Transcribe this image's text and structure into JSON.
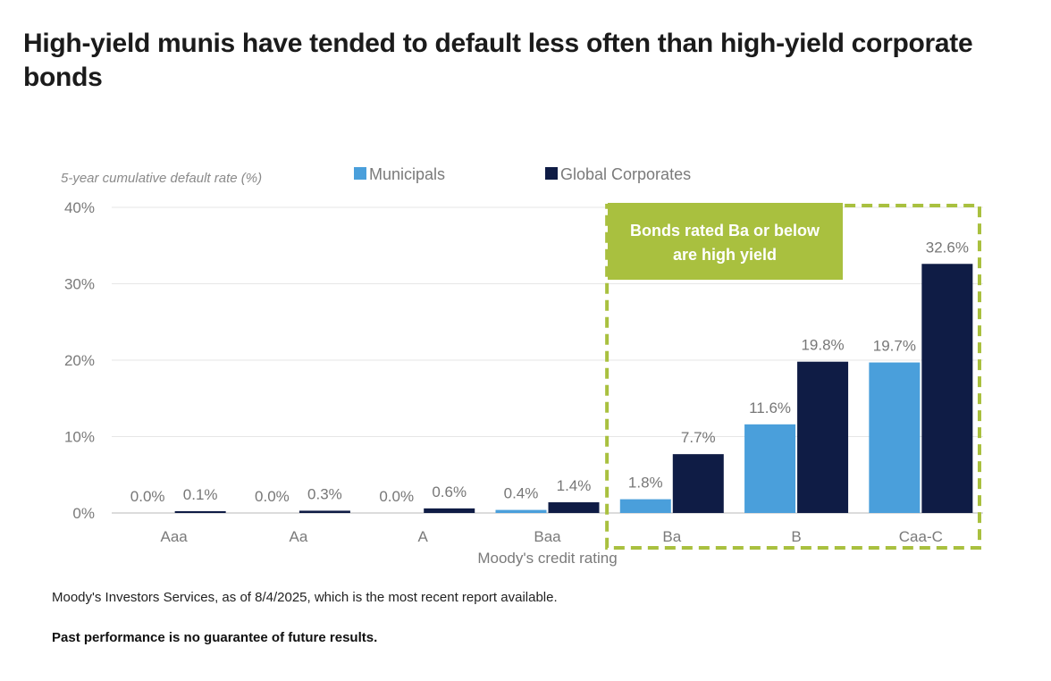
{
  "title": "High-yield munis have tended to default less often than high-yield corporate bonds",
  "source_note": "Moody's Investors Services, as of 8/4/2025, which is the most recent report available.",
  "disclaimer": "Past performance is no guarantee of future results.",
  "chart_data": {
    "type": "bar",
    "ylabel": "5-year cumulative default rate (%)",
    "xlabel": "Moody's credit rating",
    "ylim": [
      0,
      40
    ],
    "yticks": [
      "0%",
      "10%",
      "20%",
      "30%",
      "40%"
    ],
    "ytick_values": [
      0,
      10,
      20,
      30,
      40
    ],
    "categories": [
      "Aaa",
      "Aa",
      "A",
      "Baa",
      "Ba",
      "B",
      "Caa-C"
    ],
    "series": [
      {
        "name": "Municipals",
        "color": "#4a9fdb",
        "values": [
          0.0,
          0.0,
          0.0,
          0.4,
          1.8,
          11.6,
          19.7
        ],
        "labels": [
          "0.0%",
          "0.0%",
          "0.0%",
          "0.4%",
          "1.8%",
          "11.6%",
          "19.7%"
        ]
      },
      {
        "name": "Global Corporates",
        "color": "#0f1c45",
        "values": [
          0.1,
          0.3,
          0.6,
          1.4,
          7.7,
          19.8,
          32.6
        ],
        "labels": [
          "0.1%",
          "0.3%",
          "0.6%",
          "1.4%",
          "7.7%",
          "19.8%",
          "32.6%"
        ]
      }
    ],
    "legend_position": "top",
    "grid": true,
    "annotation": {
      "text_lines": [
        "Bonds rated Ba or below",
        "are high yield"
      ],
      "color": "#a9c03f",
      "highlight_categories": [
        "Ba",
        "B",
        "Caa-C"
      ]
    }
  }
}
